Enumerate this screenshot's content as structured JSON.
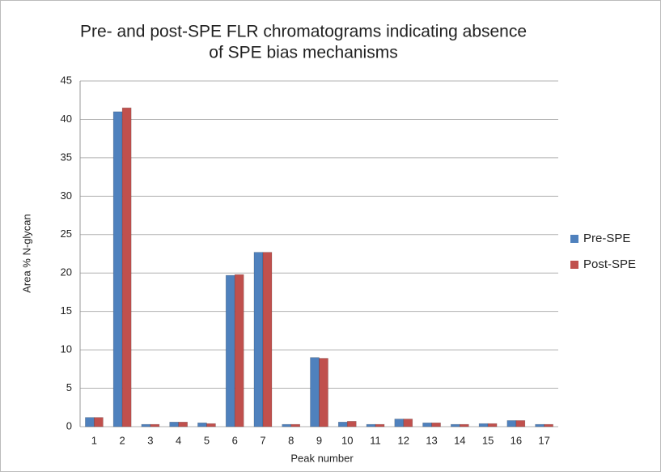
{
  "chart_data": {
    "type": "bar",
    "title": [
      "Pre- and post-SPE FLR chromatograms indicating absence",
      "of SPE bias mechanisms"
    ],
    "x_label": "Peak number",
    "y_label": "Area % N-glycan",
    "categories": [
      "1",
      "2",
      "3",
      "4",
      "5",
      "6",
      "7",
      "8",
      "9",
      "10",
      "11",
      "12",
      "13",
      "14",
      "15",
      "16",
      "17"
    ],
    "series": [
      {
        "name": "Pre-SPE",
        "color": "#4f81bd",
        "values": [
          1.2,
          41.0,
          0.3,
          0.6,
          0.5,
          19.7,
          22.7,
          0.3,
          9.0,
          0.6,
          0.3,
          1.0,
          0.5,
          0.3,
          0.4,
          0.8,
          0.3
        ]
      },
      {
        "name": "Post-SPE",
        "color": "#c0504d",
        "values": [
          1.2,
          41.5,
          0.3,
          0.6,
          0.4,
          19.8,
          22.7,
          0.3,
          8.9,
          0.7,
          0.3,
          1.0,
          0.5,
          0.3,
          0.4,
          0.8,
          0.3
        ]
      }
    ],
    "ylim": [
      0,
      45
    ],
    "yticks": [
      0,
      5,
      10,
      15,
      20,
      25,
      30,
      35,
      40,
      45
    ],
    "grid": true,
    "legend": "right"
  }
}
